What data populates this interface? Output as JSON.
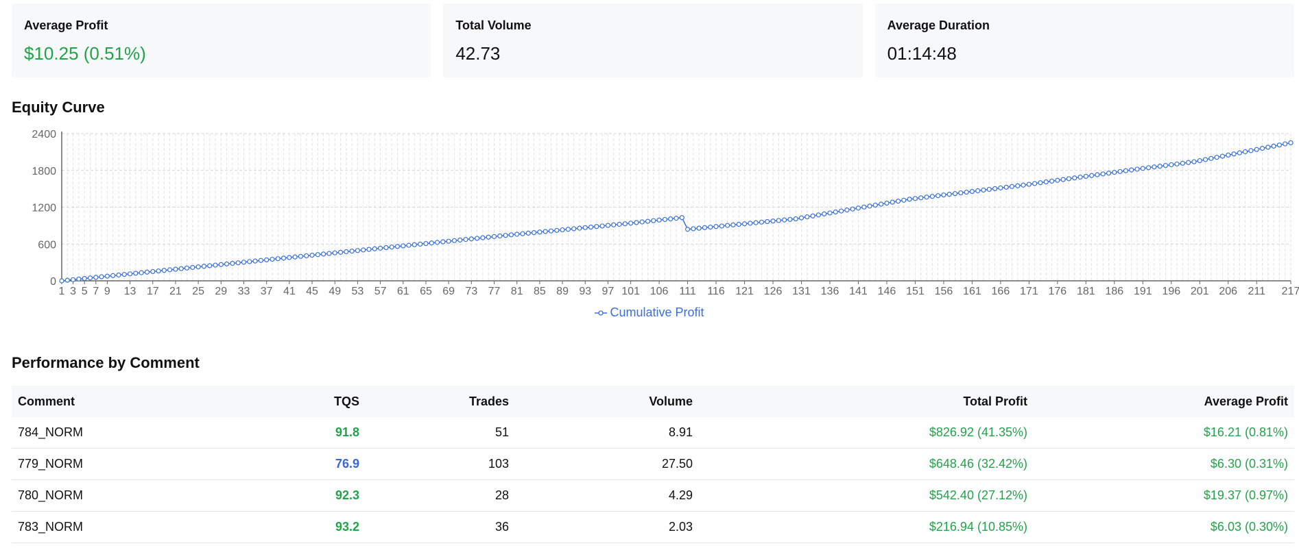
{
  "cards": [
    {
      "label": "Average Profit",
      "value": "$10.25 (0.51%)",
      "color": "#22a34a"
    },
    {
      "label": "Total Volume",
      "value": "42.73",
      "color": "#111111"
    },
    {
      "label": "Average Duration",
      "value": "01:14:48",
      "color": "#111111"
    }
  ],
  "equity_title": "Equity Curve",
  "performance_title": "Performance by Comment",
  "chart_data": {
    "type": "line",
    "title": "Equity Curve",
    "xlabel": "",
    "ylabel": "",
    "x_range": [
      1,
      217
    ],
    "ylim": [
      0,
      2400
    ],
    "y_ticks": [
      0,
      600,
      1200,
      1800,
      2400
    ],
    "x_ticks": [
      "1",
      "3",
      "5",
      "7",
      "9",
      "13",
      "17",
      "21",
      "25",
      "29",
      "33",
      "37",
      "41",
      "45",
      "49",
      "53",
      "57",
      "61",
      "65",
      "69",
      "73",
      "77",
      "81",
      "85",
      "89",
      "93",
      "97",
      "101",
      "106",
      "111",
      "116",
      "121",
      "126",
      "131",
      "136",
      "141",
      "146",
      "151",
      "156",
      "161",
      "166",
      "171",
      "176",
      "181",
      "186",
      "191",
      "196",
      "201",
      "206",
      "211",
      "217"
    ],
    "grid": true,
    "legend_position": "bottom",
    "series": [
      {
        "name": "Cumulative Profit",
        "color": "#3a6fd8",
        "marker": "circle-open",
        "anchors": [
          [
            1,
            0
          ],
          [
            20,
            180
          ],
          [
            40,
            370
          ],
          [
            60,
            560
          ],
          [
            80,
            750
          ],
          [
            100,
            930
          ],
          [
            110,
            1030
          ],
          [
            111,
            840
          ],
          [
            130,
            1010
          ],
          [
            150,
            1330
          ],
          [
            170,
            1560
          ],
          [
            190,
            1820
          ],
          [
            200,
            1940
          ],
          [
            217,
            2250
          ]
        ]
      }
    ]
  },
  "table": {
    "headers": [
      "Comment",
      "TQS",
      "Trades",
      "Volume",
      "Total Profit",
      "Average Profit"
    ],
    "rows": [
      {
        "comment": "784_NORM",
        "tqs": "91.8",
        "tqs_color": "#22a34a",
        "trades": "51",
        "volume": "8.91",
        "total_profit": "$826.92 (41.35%)",
        "avg_profit": "$16.21 (0.81%)"
      },
      {
        "comment": "779_NORM",
        "tqs": "76.9",
        "tqs_color": "#3a64db",
        "trades": "103",
        "volume": "27.50",
        "total_profit": "$648.46 (32.42%)",
        "avg_profit": "$6.30 (0.31%)"
      },
      {
        "comment": "780_NORM",
        "tqs": "92.3",
        "tqs_color": "#22a34a",
        "trades": "28",
        "volume": "4.29",
        "total_profit": "$542.40 (27.12%)",
        "avg_profit": "$19.37 (0.97%)"
      },
      {
        "comment": "783_NORM",
        "tqs": "93.2",
        "tqs_color": "#22a34a",
        "trades": "36",
        "volume": "2.03",
        "total_profit": "$216.94 (10.85%)",
        "avg_profit": "$6.03 (0.30%)"
      }
    ]
  }
}
